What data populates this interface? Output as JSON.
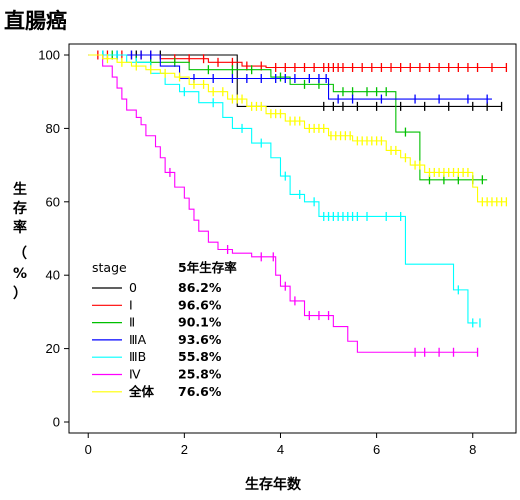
{
  "chart_data": {
    "type": "line",
    "subtype": "kaplan-meier step curves with censor ticks",
    "title": "直腸癌",
    "xlabel": "生存年数",
    "ylabel": "生存率（%）",
    "xlim": [
      -0.4,
      8.9
    ],
    "ylim": [
      -3,
      103
    ],
    "xticks": [
      0,
      2,
      4,
      6,
      8
    ],
    "yticks": [
      0,
      20,
      40,
      60,
      80,
      100
    ],
    "grid": false,
    "legend": {
      "placement": "bottom-left",
      "header_left": "stage",
      "header_right": "5年生存率"
    },
    "series": [
      {
        "name": "0",
        "color": "#000000",
        "five_year_rate": "86.2%",
        "points": [
          [
            0,
            100
          ],
          [
            3.1,
            100
          ],
          [
            3.1,
            86
          ],
          [
            8.6,
            86
          ]
        ],
        "censor": [
          0.3,
          0.6,
          1.0,
          1.5,
          4.9,
          5.1,
          5.3,
          5.6,
          6.0,
          6.5,
          7.0,
          7.5,
          8.0,
          8.3,
          8.6
        ]
      },
      {
        "name": "Ⅰ",
        "color": "#ff0000",
        "five_year_rate": "96.6%",
        "points": [
          [
            0,
            100
          ],
          [
            1.5,
            100
          ],
          [
            1.5,
            99
          ],
          [
            2.5,
            99
          ],
          [
            2.5,
            98
          ],
          [
            3.2,
            98
          ],
          [
            3.2,
            97
          ],
          [
            3.7,
            97
          ],
          [
            3.7,
            96.6
          ],
          [
            8.7,
            96.6
          ]
        ],
        "censor": [
          0.2,
          0.4,
          0.7,
          0.9,
          1.1,
          1.3,
          1.8,
          2.1,
          2.4,
          2.7,
          3.0,
          3.3,
          3.6,
          3.9,
          4.1,
          4.3,
          4.5,
          4.7,
          4.9,
          5.0,
          5.1,
          5.2,
          5.3,
          5.5,
          5.7,
          5.9,
          6.1,
          6.3,
          6.5,
          6.7,
          6.9,
          7.1,
          7.3,
          7.5,
          7.7,
          7.9,
          8.1,
          8.4,
          8.7
        ]
      },
      {
        "name": "Ⅱ",
        "color": "#00c000",
        "five_year_rate": "90.1%",
        "points": [
          [
            0,
            100
          ],
          [
            1.0,
            100
          ],
          [
            1.0,
            98
          ],
          [
            2.1,
            98
          ],
          [
            2.1,
            96
          ],
          [
            3.8,
            96
          ],
          [
            3.8,
            94
          ],
          [
            4.2,
            94
          ],
          [
            4.2,
            92
          ],
          [
            5.1,
            92
          ],
          [
            5.1,
            90
          ],
          [
            6.4,
            90
          ],
          [
            6.4,
            79
          ],
          [
            6.9,
            79
          ],
          [
            6.9,
            66
          ],
          [
            8.3,
            66
          ]
        ],
        "censor": [
          0.5,
          1.3,
          1.8,
          2.5,
          3.0,
          3.4,
          4.0,
          4.5,
          4.8,
          5.3,
          5.5,
          5.8,
          6.0,
          6.2,
          6.6,
          7.1,
          7.4,
          7.7,
          8.0,
          8.2
        ]
      },
      {
        "name": "ⅢA",
        "color": "#0000ff",
        "five_year_rate": "93.6%",
        "points": [
          [
            0,
            100
          ],
          [
            1.5,
            100
          ],
          [
            1.5,
            97
          ],
          [
            1.9,
            97
          ],
          [
            1.9,
            93.6
          ],
          [
            5.0,
            93.6
          ],
          [
            5.0,
            88
          ],
          [
            8.4,
            88
          ]
        ],
        "censor": [
          0.3,
          0.6,
          0.9,
          1.1,
          1.3,
          2.2,
          2.6,
          3.0,
          3.3,
          3.6,
          3.9,
          4.1,
          4.3,
          4.6,
          4.8,
          4.95,
          5.2,
          5.5,
          6.1,
          6.8,
          7.3,
          7.9,
          8.3
        ]
      },
      {
        "name": "ⅢB",
        "color": "#00ffff",
        "five_year_rate": "55.8%",
        "points": [
          [
            0,
            100
          ],
          [
            0.8,
            100
          ],
          [
            0.8,
            98
          ],
          [
            1.3,
            98
          ],
          [
            1.3,
            95
          ],
          [
            1.6,
            95
          ],
          [
            1.6,
            92
          ],
          [
            1.9,
            92
          ],
          [
            1.9,
            90
          ],
          [
            2.3,
            90
          ],
          [
            2.3,
            87
          ],
          [
            2.8,
            87
          ],
          [
            2.8,
            83
          ],
          [
            3.0,
            83
          ],
          [
            3.0,
            80
          ],
          [
            3.4,
            80
          ],
          [
            3.4,
            76
          ],
          [
            3.8,
            76
          ],
          [
            3.8,
            72
          ],
          [
            4.0,
            72
          ],
          [
            4.0,
            67
          ],
          [
            4.2,
            67
          ],
          [
            4.2,
            62
          ],
          [
            4.5,
            62
          ],
          [
            4.5,
            60
          ],
          [
            4.8,
            60
          ],
          [
            4.8,
            56
          ],
          [
            6.6,
            56
          ],
          [
            6.6,
            43
          ],
          [
            7.6,
            43
          ],
          [
            7.6,
            36
          ],
          [
            7.9,
            36
          ],
          [
            7.9,
            27
          ],
          [
            8.1,
            27
          ]
        ],
        "censor": [
          0.3,
          0.6,
          1.0,
          2.0,
          2.6,
          3.2,
          3.6,
          4.1,
          4.4,
          4.7,
          4.9,
          5.0,
          5.1,
          5.2,
          5.3,
          5.4,
          5.5,
          5.6,
          5.8,
          6.2,
          6.5,
          7.7,
          8.0,
          8.15
        ]
      },
      {
        "name": "Ⅳ",
        "color": "#ff00ff",
        "five_year_rate": "25.8%",
        "points": [
          [
            0,
            100
          ],
          [
            0.3,
            100
          ],
          [
            0.3,
            97
          ],
          [
            0.5,
            97
          ],
          [
            0.5,
            94
          ],
          [
            0.6,
            94
          ],
          [
            0.6,
            91
          ],
          [
            0.7,
            91
          ],
          [
            0.7,
            88
          ],
          [
            0.8,
            88
          ],
          [
            0.8,
            85
          ],
          [
            1.0,
            85
          ],
          [
            1.0,
            83
          ],
          [
            1.1,
            83
          ],
          [
            1.1,
            81
          ],
          [
            1.2,
            81
          ],
          [
            1.2,
            78
          ],
          [
            1.4,
            78
          ],
          [
            1.4,
            75
          ],
          [
            1.5,
            75
          ],
          [
            1.5,
            72
          ],
          [
            1.6,
            72
          ],
          [
            1.6,
            68
          ],
          [
            1.8,
            68
          ],
          [
            1.8,
            64
          ],
          [
            2.0,
            64
          ],
          [
            2.0,
            61
          ],
          [
            2.1,
            61
          ],
          [
            2.1,
            58
          ],
          [
            2.2,
            58
          ],
          [
            2.2,
            55
          ],
          [
            2.3,
            55
          ],
          [
            2.3,
            52
          ],
          [
            2.5,
            52
          ],
          [
            2.5,
            49
          ],
          [
            2.7,
            49
          ],
          [
            2.7,
            47
          ],
          [
            3.0,
            47
          ],
          [
            3.0,
            46
          ],
          [
            3.4,
            46
          ],
          [
            3.4,
            45
          ],
          [
            3.9,
            45
          ],
          [
            3.9,
            40
          ],
          [
            4.0,
            40
          ],
          [
            4.0,
            37
          ],
          [
            4.2,
            37
          ],
          [
            4.2,
            33
          ],
          [
            4.5,
            33
          ],
          [
            4.5,
            29
          ],
          [
            5.1,
            29
          ],
          [
            5.1,
            26
          ],
          [
            5.4,
            26
          ],
          [
            5.4,
            22
          ],
          [
            5.6,
            22
          ],
          [
            5.6,
            19
          ],
          [
            8.1,
            19
          ]
        ],
        "censor": [
          1.7,
          2.9,
          3.6,
          3.85,
          4.1,
          4.3,
          4.6,
          4.8,
          5.0,
          6.8,
          7.0,
          7.3,
          7.6,
          8.1
        ]
      },
      {
        "name": "全体",
        "color": "#ffff00",
        "five_year_rate": "76.6%",
        "points": [
          [
            0,
            100
          ],
          [
            0.3,
            100
          ],
          [
            0.3,
            99
          ],
          [
            0.6,
            99
          ],
          [
            0.6,
            98
          ],
          [
            0.9,
            98
          ],
          [
            0.9,
            97
          ],
          [
            1.2,
            97
          ],
          [
            1.2,
            96
          ],
          [
            1.5,
            96
          ],
          [
            1.5,
            95
          ],
          [
            1.8,
            95
          ],
          [
            1.8,
            94
          ],
          [
            2.1,
            94
          ],
          [
            2.1,
            92
          ],
          [
            2.5,
            92
          ],
          [
            2.5,
            90
          ],
          [
            2.9,
            90
          ],
          [
            2.9,
            88
          ],
          [
            3.3,
            88
          ],
          [
            3.3,
            86
          ],
          [
            3.7,
            86
          ],
          [
            3.7,
            84
          ],
          [
            4.1,
            84
          ],
          [
            4.1,
            82
          ],
          [
            4.5,
            82
          ],
          [
            4.5,
            80
          ],
          [
            5.0,
            80
          ],
          [
            5.0,
            78
          ],
          [
            5.5,
            78
          ],
          [
            5.5,
            76.6
          ],
          [
            6.2,
            76.6
          ],
          [
            6.2,
            74
          ],
          [
            6.5,
            74
          ],
          [
            6.5,
            72
          ],
          [
            6.7,
            72
          ],
          [
            6.7,
            70
          ],
          [
            7.0,
            70
          ],
          [
            7.0,
            68
          ],
          [
            8.0,
            68
          ],
          [
            8.0,
            64
          ],
          [
            8.1,
            64
          ],
          [
            8.1,
            60
          ],
          [
            8.7,
            60
          ]
        ],
        "censor": [
          0.4,
          0.7,
          1.0,
          1.3,
          1.6,
          1.9,
          2.2,
          2.4,
          2.6,
          2.8,
          3.0,
          3.1,
          3.2,
          3.4,
          3.5,
          3.6,
          3.8,
          3.9,
          4.0,
          4.2,
          4.3,
          4.4,
          4.6,
          4.7,
          4.8,
          4.9,
          5.05,
          5.15,
          5.25,
          5.35,
          5.45,
          5.6,
          5.7,
          5.8,
          5.9,
          6.0,
          6.1,
          6.3,
          6.4,
          6.6,
          6.8,
          6.9,
          7.1,
          7.2,
          7.3,
          7.4,
          7.5,
          7.6,
          7.7,
          7.8,
          7.9,
          8.2,
          8.3,
          8.4,
          8.5,
          8.6,
          8.7
        ]
      }
    ]
  }
}
